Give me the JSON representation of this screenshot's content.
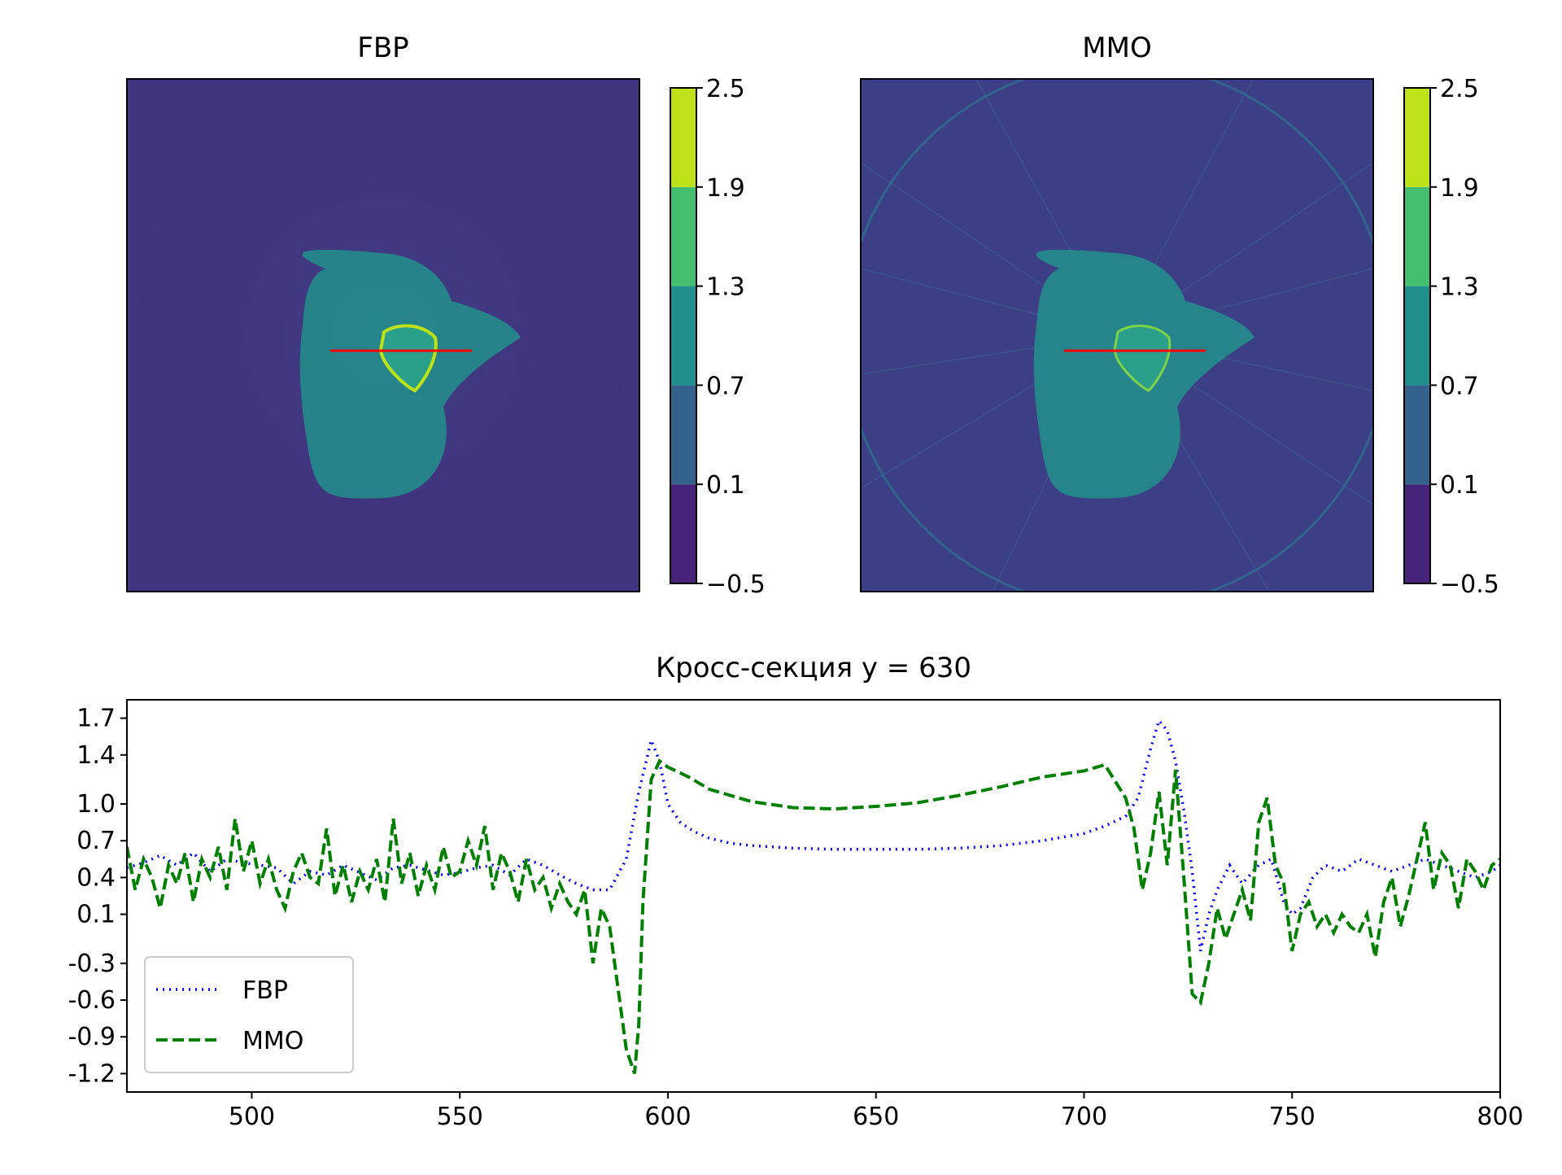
{
  "panels": [
    {
      "title": "FBP",
      "colorbar_ticks": [
        "2.5",
        "1.9",
        "1.3",
        "0.7",
        "0.1",
        "−0.5"
      ],
      "overlay_line_color": "#ff0000"
    },
    {
      "title": "MMO",
      "colorbar_ticks": [
        "2.5",
        "1.9",
        "1.3",
        "0.7",
        "0.1",
        "−0.5"
      ],
      "overlay_line_color": "#ff0000"
    }
  ],
  "colormap": {
    "levels": [
      -0.5,
      0.1,
      0.7,
      1.3,
      1.9,
      2.5
    ],
    "colors": [
      "#46247a",
      "#33638d",
      "#21908d",
      "#44bf70",
      "#bde318"
    ]
  },
  "chart_data": {
    "type": "line",
    "title": "Кросс-секция y = 630",
    "xlabel": "",
    "ylabel": "",
    "xlim": [
      470,
      800
    ],
    "ylim": [
      -1.35,
      1.85
    ],
    "xticks": [
      500,
      550,
      600,
      650,
      700,
      750,
      800
    ],
    "yticks": [
      "1.7",
      "1.4",
      "1.0",
      "0.7",
      "0.4",
      "0.1",
      "-0.3",
      "-0.6",
      "-0.9",
      "-1.2"
    ],
    "ytick_values": [
      1.7,
      1.4,
      1.0,
      0.7,
      0.4,
      0.1,
      -0.3,
      -0.6,
      -0.9,
      -1.2
    ],
    "legend_position": "lower-left",
    "series": [
      {
        "name": "FBP",
        "color": "#0000ff",
        "style": "dotted",
        "x": [
          470,
          474,
          478,
          482,
          486,
          490,
          494,
          498,
          502,
          506,
          510,
          514,
          518,
          522,
          526,
          530,
          534,
          538,
          542,
          546,
          550,
          554,
          558,
          562,
          566,
          570,
          574,
          578,
          582,
          586,
          590,
          593,
          596,
          598,
          600,
          603,
          606,
          610,
          615,
          620,
          630,
          640,
          650,
          660,
          670,
          680,
          690,
          700,
          705,
          710,
          713,
          716,
          718,
          720,
          722,
          724,
          726,
          728,
          730,
          732,
          735,
          738,
          742,
          745,
          748,
          750,
          752,
          755,
          758,
          762,
          766,
          770,
          774,
          778,
          782,
          786,
          790,
          794,
          798,
          800
        ],
        "y": [
          0.48,
          0.52,
          0.58,
          0.5,
          0.6,
          0.45,
          0.55,
          0.52,
          0.5,
          0.48,
          0.35,
          0.45,
          0.42,
          0.5,
          0.44,
          0.38,
          0.48,
          0.5,
          0.46,
          0.42,
          0.44,
          0.48,
          0.5,
          0.42,
          0.55,
          0.5,
          0.42,
          0.35,
          0.3,
          0.3,
          0.55,
          1.1,
          1.52,
          1.35,
          1.0,
          0.85,
          0.78,
          0.72,
          0.68,
          0.66,
          0.64,
          0.63,
          0.63,
          0.63,
          0.64,
          0.66,
          0.7,
          0.76,
          0.82,
          0.9,
          1.05,
          1.45,
          1.68,
          1.6,
          1.35,
          0.95,
          0.45,
          -0.2,
          0.1,
          0.3,
          0.5,
          0.35,
          0.5,
          0.55,
          0.2,
          0.1,
          0.15,
          0.4,
          0.5,
          0.45,
          0.55,
          0.5,
          0.45,
          0.5,
          0.55,
          0.5,
          0.45,
          0.4,
          0.45,
          0.5
        ]
      },
      {
        "name": "MMO",
        "color": "#007f00",
        "style": "dashed",
        "x": [
          470,
          472,
          474,
          476,
          478,
          480,
          482,
          484,
          486,
          488,
          490,
          492,
          494,
          496,
          498,
          500,
          502,
          504,
          506,
          508,
          510,
          512,
          514,
          516,
          518,
          520,
          522,
          524,
          526,
          528,
          530,
          532,
          534,
          536,
          538,
          540,
          542,
          544,
          546,
          548,
          550,
          552,
          554,
          556,
          558,
          560,
          562,
          564,
          566,
          568,
          570,
          572,
          574,
          576,
          578,
          580,
          582,
          584,
          586,
          588,
          590,
          592,
          593,
          594,
          596,
          598,
          600,
          602,
          605,
          610,
          620,
          630,
          640,
          650,
          660,
          670,
          680,
          690,
          700,
          705,
          710,
          712,
          714,
          716,
          718,
          720,
          722,
          724,
          726,
          728,
          730,
          732,
          734,
          736,
          738,
          740,
          742,
          744,
          746,
          748,
          750,
          752,
          754,
          756,
          758,
          760,
          762,
          764,
          766,
          768,
          770,
          772,
          774,
          776,
          778,
          780,
          782,
          784,
          786,
          788,
          790,
          792,
          794,
          796,
          798,
          800
        ],
        "y": [
          0.65,
          0.3,
          0.55,
          0.4,
          0.15,
          0.5,
          0.35,
          0.6,
          0.2,
          0.55,
          0.4,
          0.65,
          0.3,
          0.88,
          0.45,
          0.7,
          0.35,
          0.55,
          0.3,
          0.15,
          0.45,
          0.6,
          0.4,
          0.35,
          0.8,
          0.25,
          0.5,
          0.2,
          0.45,
          0.3,
          0.55,
          0.2,
          0.88,
          0.35,
          0.6,
          0.25,
          0.5,
          0.3,
          0.65,
          0.4,
          0.45,
          0.7,
          0.5,
          0.82,
          0.3,
          0.6,
          0.45,
          0.2,
          0.55,
          0.3,
          0.4,
          0.15,
          0.35,
          0.2,
          0.1,
          0.3,
          -0.3,
          0.15,
          0.0,
          -0.5,
          -1.0,
          -1.2,
          -0.8,
          0.2,
          1.2,
          1.35,
          1.3,
          1.27,
          1.22,
          1.12,
          1.02,
          0.97,
          0.96,
          0.98,
          1.01,
          1.07,
          1.14,
          1.22,
          1.27,
          1.32,
          1.05,
          0.8,
          0.3,
          0.6,
          1.1,
          0.5,
          1.28,
          0.4,
          -0.55,
          -0.62,
          -0.3,
          0.15,
          -0.1,
          0.1,
          0.3,
          0.05,
          0.85,
          1.05,
          0.5,
          0.35,
          -0.2,
          0.1,
          0.2,
          0.0,
          0.1,
          -0.05,
          0.1,
          0.0,
          -0.05,
          0.1,
          -0.25,
          0.2,
          0.4,
          0.0,
          0.25,
          0.55,
          0.85,
          0.3,
          0.6,
          0.5,
          0.15,
          0.55,
          0.45,
          0.3,
          0.5,
          0.55
        ]
      }
    ]
  }
}
